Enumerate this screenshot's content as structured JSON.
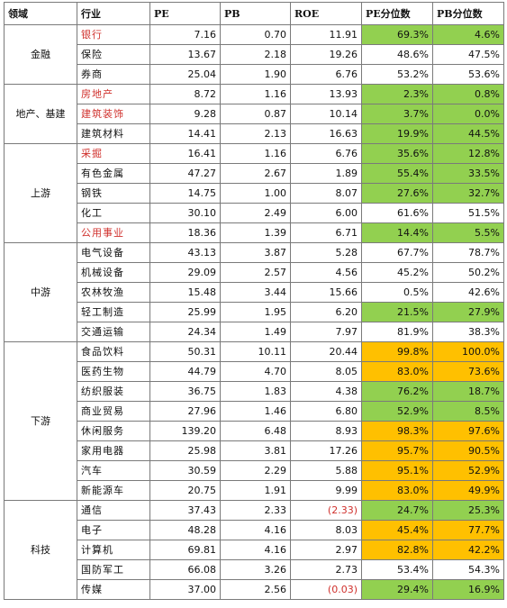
{
  "colors": {
    "green": "#92d050",
    "orange": "#ffc000",
    "red_text": "#d0312d"
  },
  "headers": [
    "领域",
    "行业",
    "PE",
    "PB",
    "ROE",
    "PE分位数",
    "PB分位数"
  ],
  "sectors": [
    {
      "name": "金融",
      "rows": [
        {
          "industry": "银行",
          "red": true,
          "pe": "7.16",
          "pb": "0.70",
          "roe": "11.91",
          "pe_pct": "69.3%",
          "pb_pct": "4.6%",
          "pe_hl": "green",
          "pb_hl": "green"
        },
        {
          "industry": "保险",
          "red": false,
          "pe": "13.67",
          "pb": "2.18",
          "roe": "19.26",
          "pe_pct": "48.6%",
          "pb_pct": "47.5%",
          "pe_hl": "",
          "pb_hl": ""
        },
        {
          "industry": "券商",
          "red": false,
          "pe": "25.04",
          "pb": "1.90",
          "roe": "6.76",
          "pe_pct": "53.2%",
          "pb_pct": "53.6%",
          "pe_hl": "",
          "pb_hl": ""
        }
      ]
    },
    {
      "name": "地产、基建",
      "rows": [
        {
          "industry": "房地产",
          "red": true,
          "pe": "8.72",
          "pb": "1.16",
          "roe": "13.93",
          "pe_pct": "2.3%",
          "pb_pct": "0.8%",
          "pe_hl": "green",
          "pb_hl": "green"
        },
        {
          "industry": "建筑装饰",
          "red": true,
          "pe": "9.28",
          "pb": "0.87",
          "roe": "10.14",
          "pe_pct": "3.7%",
          "pb_pct": "0.0%",
          "pe_hl": "green",
          "pb_hl": "green"
        },
        {
          "industry": "建筑材料",
          "red": false,
          "pe": "14.41",
          "pb": "2.13",
          "roe": "16.63",
          "pe_pct": "19.9%",
          "pb_pct": "44.5%",
          "pe_hl": "green",
          "pb_hl": "green"
        }
      ]
    },
    {
      "name": "上游",
      "rows": [
        {
          "industry": "采掘",
          "red": true,
          "pe": "16.41",
          "pb": "1.16",
          "roe": "6.76",
          "pe_pct": "35.6%",
          "pb_pct": "12.8%",
          "pe_hl": "green",
          "pb_hl": "green"
        },
        {
          "industry": "有色金属",
          "red": false,
          "pe": "47.27",
          "pb": "2.67",
          "roe": "1.89",
          "pe_pct": "55.4%",
          "pb_pct": "33.5%",
          "pe_hl": "green",
          "pb_hl": "green"
        },
        {
          "industry": "钢铁",
          "red": false,
          "pe": "14.75",
          "pb": "1.00",
          "roe": "8.07",
          "pe_pct": "27.6%",
          "pb_pct": "32.7%",
          "pe_hl": "green",
          "pb_hl": "green"
        },
        {
          "industry": "化工",
          "red": false,
          "pe": "30.10",
          "pb": "2.49",
          "roe": "6.00",
          "pe_pct": "61.6%",
          "pb_pct": "51.5%",
          "pe_hl": "",
          "pb_hl": ""
        },
        {
          "industry": "公用事业",
          "red": true,
          "pe": "18.36",
          "pb": "1.39",
          "roe": "6.71",
          "pe_pct": "14.4%",
          "pb_pct": "5.5%",
          "pe_hl": "green",
          "pb_hl": "green"
        }
      ]
    },
    {
      "name": "中游",
      "rows": [
        {
          "industry": "电气设备",
          "red": false,
          "pe": "43.13",
          "pb": "3.87",
          "roe": "5.28",
          "pe_pct": "67.7%",
          "pb_pct": "78.7%",
          "pe_hl": "",
          "pb_hl": ""
        },
        {
          "industry": "机械设备",
          "red": false,
          "pe": "29.09",
          "pb": "2.57",
          "roe": "4.56",
          "pe_pct": "45.2%",
          "pb_pct": "50.2%",
          "pe_hl": "",
          "pb_hl": ""
        },
        {
          "industry": "农林牧渔",
          "red": false,
          "pe": "15.48",
          "pb": "3.44",
          "roe": "15.66",
          "pe_pct": "0.5%",
          "pb_pct": "42.6%",
          "pe_hl": "",
          "pb_hl": ""
        },
        {
          "industry": "轻工制造",
          "red": false,
          "pe": "25.99",
          "pb": "1.95",
          "roe": "6.20",
          "pe_pct": "21.5%",
          "pb_pct": "27.9%",
          "pe_hl": "green",
          "pb_hl": "green"
        },
        {
          "industry": "交通运输",
          "red": false,
          "pe": "24.34",
          "pb": "1.49",
          "roe": "7.97",
          "pe_pct": "81.9%",
          "pb_pct": "38.3%",
          "pe_hl": "",
          "pb_hl": ""
        }
      ]
    },
    {
      "name": "下游",
      "rows": [
        {
          "industry": "食品饮料",
          "red": false,
          "pe": "50.31",
          "pb": "10.11",
          "roe": "20.44",
          "pe_pct": "99.8%",
          "pb_pct": "100.0%",
          "pe_hl": "orange",
          "pb_hl": "orange"
        },
        {
          "industry": "医药生物",
          "red": false,
          "pe": "44.79",
          "pb": "4.70",
          "roe": "8.05",
          "pe_pct": "83.0%",
          "pb_pct": "73.6%",
          "pe_hl": "orange",
          "pb_hl": "orange"
        },
        {
          "industry": "纺织服装",
          "red": false,
          "pe": "36.75",
          "pb": "1.83",
          "roe": "4.38",
          "pe_pct": "76.2%",
          "pb_pct": "18.7%",
          "pe_hl": "green",
          "pb_hl": "green"
        },
        {
          "industry": "商业贸易",
          "red": false,
          "pe": "27.96",
          "pb": "1.46",
          "roe": "6.80",
          "pe_pct": "52.9%",
          "pb_pct": "8.5%",
          "pe_hl": "green",
          "pb_hl": "green"
        },
        {
          "industry": "休闲服务",
          "red": false,
          "pe": "139.20",
          "pb": "6.48",
          "roe": "8.93",
          "pe_pct": "98.3%",
          "pb_pct": "97.6%",
          "pe_hl": "orange",
          "pb_hl": "orange"
        },
        {
          "industry": "家用电器",
          "red": false,
          "pe": "25.98",
          "pb": "3.81",
          "roe": "17.26",
          "pe_pct": "95.7%",
          "pb_pct": "90.5%",
          "pe_hl": "orange",
          "pb_hl": "orange"
        },
        {
          "industry": "汽车",
          "red": false,
          "pe": "30.59",
          "pb": "2.29",
          "roe": "5.88",
          "pe_pct": "95.1%",
          "pb_pct": "52.9%",
          "pe_hl": "orange",
          "pb_hl": "orange"
        },
        {
          "industry": "新能源车",
          "red": false,
          "pe": "20.75",
          "pb": "1.91",
          "roe": "9.99",
          "pe_pct": "83.0%",
          "pb_pct": "49.9%",
          "pe_hl": "orange",
          "pb_hl": "orange"
        }
      ]
    },
    {
      "name": "科技",
      "rows": [
        {
          "industry": "通信",
          "red": false,
          "pe": "37.43",
          "pb": "2.33",
          "roe": "(2.33)",
          "roe_neg": true,
          "pe_pct": "24.7%",
          "pb_pct": "25.3%",
          "pe_hl": "green",
          "pb_hl": "green"
        },
        {
          "industry": "电子",
          "red": false,
          "pe": "48.28",
          "pb": "4.16",
          "roe": "8.03",
          "pe_pct": "45.4%",
          "pb_pct": "77.7%",
          "pe_hl": "orange",
          "pb_hl": "orange"
        },
        {
          "industry": "计算机",
          "red": false,
          "pe": "69.81",
          "pb": "4.16",
          "roe": "2.97",
          "pe_pct": "82.8%",
          "pb_pct": "42.2%",
          "pe_hl": "orange",
          "pb_hl": "orange"
        },
        {
          "industry": "国防军工",
          "red": false,
          "pe": "66.08",
          "pb": "3.26",
          "roe": "2.73",
          "pe_pct": "53.4%",
          "pb_pct": "54.3%",
          "pe_hl": "",
          "pb_hl": ""
        },
        {
          "industry": "传媒",
          "red": false,
          "pe": "37.00",
          "pb": "2.56",
          "roe": "(0.03)",
          "roe_neg": true,
          "pe_pct": "29.4%",
          "pb_pct": "16.9%",
          "pe_hl": "green",
          "pb_hl": "green"
        }
      ]
    }
  ]
}
